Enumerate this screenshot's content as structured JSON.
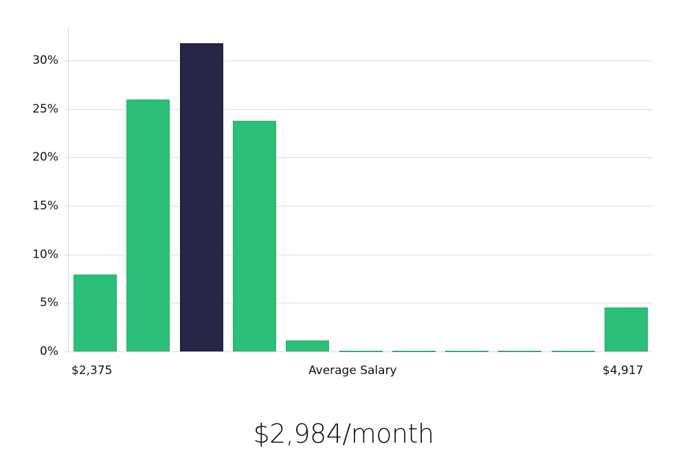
{
  "chart_data": {
    "type": "bar",
    "title": "",
    "xlabel": "Average Salary",
    "ylabel": "",
    "categories": [
      "1",
      "2",
      "3",
      "4",
      "5",
      "6",
      "7",
      "8",
      "9",
      "10",
      "11"
    ],
    "values": [
      7.9,
      26.0,
      31.8,
      23.8,
      1.1,
      0.1,
      0.1,
      0.1,
      0.1,
      0.1,
      4.5
    ],
    "highlight_index": 2,
    "ylim": [
      0,
      33
    ],
    "yticks": [
      0,
      5,
      10,
      15,
      20,
      25,
      30
    ],
    "ytick_labels": [
      "0%",
      "5%",
      "10%",
      "15%",
      "20%",
      "25%",
      "30%"
    ],
    "x_min_label": "$2,375",
    "x_max_label": "$4,917",
    "grid": true,
    "colors": {
      "bar": "#2bbf77",
      "highlight": "#282646",
      "grid": "#dcdcdc"
    }
  },
  "labels": {
    "x_min": "$2,375",
    "x_center": "Average Salary",
    "x_max": "$4,917"
  },
  "summary": "$2,984/month"
}
